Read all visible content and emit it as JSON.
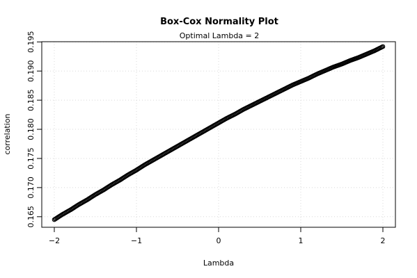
{
  "chart_data": {
    "type": "scatter",
    "title": "Box-Cox Normality Plot",
    "subtitle": "Optimal Lambda = 2",
    "xlabel": "Lambda",
    "ylabel": "correlation",
    "xlim": [
      -2,
      2
    ],
    "ylim": [
      0.1645,
      0.1942
    ],
    "x_ticks": [
      "−2",
      "−1",
      "0",
      "1",
      "2"
    ],
    "y_ticks": [
      "0.165",
      "0.170",
      "0.175",
      "0.180",
      "0.185",
      "0.190",
      "0.195"
    ],
    "grid": true,
    "series": [
      {
        "x": [
          -2.0,
          -1.9,
          -1.8,
          -1.7,
          -1.6,
          -1.5,
          -1.4,
          -1.3,
          -1.2,
          -1.1,
          -1.0,
          -0.9,
          -0.8,
          -0.7,
          -0.6,
          -0.5,
          -0.4,
          -0.3,
          -0.2,
          -0.1,
          0.0,
          0.1,
          0.2,
          0.3,
          0.4,
          0.5,
          0.6,
          0.7,
          0.8,
          0.9,
          1.0,
          1.1,
          1.2,
          1.3,
          1.4,
          1.5,
          1.6,
          1.7,
          1.8,
          1.9,
          2.0
        ],
        "y": [
          0.1645,
          0.1654,
          0.1662,
          0.1671,
          0.1679,
          0.1688,
          0.1696,
          0.1705,
          0.1713,
          0.1722,
          0.173,
          0.1739,
          0.1747,
          0.1755,
          0.1763,
          0.1771,
          0.1779,
          0.1787,
          0.1795,
          0.1803,
          0.1811,
          0.1819,
          0.1826,
          0.1834,
          0.1841,
          0.1848,
          0.1855,
          0.1862,
          0.1869,
          0.1876,
          0.1882,
          0.1888,
          0.1895,
          0.1901,
          0.1907,
          0.1912,
          0.1918,
          0.1923,
          0.1929,
          0.1935,
          0.1942
        ]
      }
    ]
  }
}
